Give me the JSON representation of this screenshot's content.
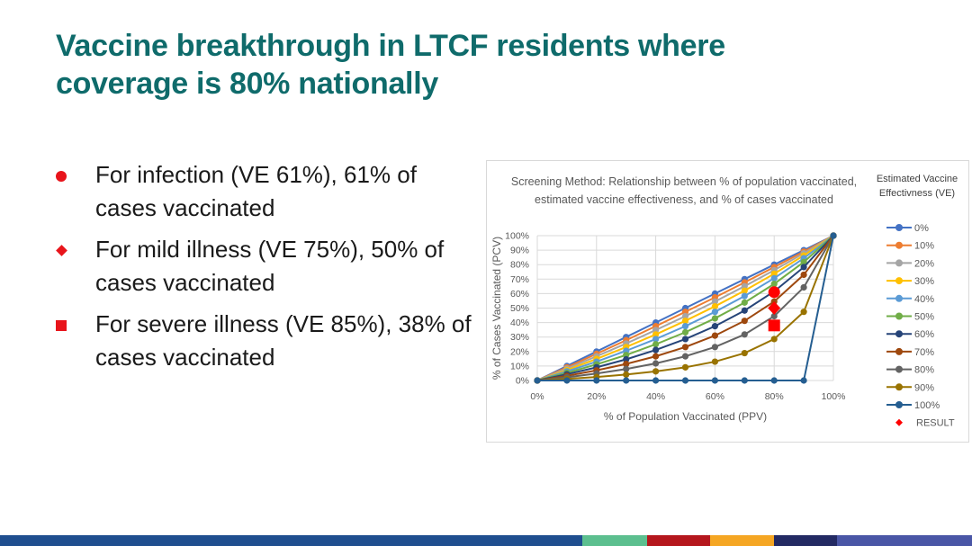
{
  "slide": {
    "title": "Vaccine breakthrough in LTCF residents where coverage is 80% nationally",
    "bullets": [
      {
        "text": "For infection (VE 61%), 61% of cases vaccinated",
        "marker": "circle"
      },
      {
        "text": "For mild illness (VE 75%), 50% of cases vaccinated",
        "marker": "diamond"
      },
      {
        "text": "For severe illness (VE 85%), 38% of cases vaccinated",
        "marker": "square"
      }
    ],
    "accent_color": "#0f6b6b",
    "marker_color": "#e8141b",
    "bottom_bar_colors": [
      "#1f4e8f",
      "#5cbf8f",
      "#b5171d",
      "#f5a623",
      "#232a63",
      "#4a56a6"
    ]
  },
  "chart_data": {
    "type": "line",
    "title": "Screening Method: Relationship between % of population vaccinated, estimated vaccine effectiveness, and % of cases vaccinated",
    "xlabel": "% of Population Vaccinated (PPV)",
    "ylabel": "% of Cases Vaccinated (PCV)",
    "xlim": [
      0,
      100
    ],
    "ylim": [
      0,
      100
    ],
    "x_ticks": [
      "0%",
      "20%",
      "40%",
      "60%",
      "80%",
      "100%"
    ],
    "y_ticks": [
      "0%",
      "10%",
      "20%",
      "30%",
      "40%",
      "50%",
      "60%",
      "70%",
      "80%",
      "90%",
      "100%"
    ],
    "grid": true,
    "legend_title": "Estimated Vaccine Effectivness (VE)",
    "legend_position": "right",
    "x": [
      0,
      10,
      20,
      30,
      40,
      50,
      60,
      70,
      80,
      90,
      100
    ],
    "series": [
      {
        "name": "0%",
        "color": "#4472c4",
        "values": [
          0,
          10,
          20,
          30,
          40,
          50,
          60,
          70,
          80,
          90,
          100
        ]
      },
      {
        "name": "10%",
        "color": "#ed7d31",
        "values": [
          0,
          9.1,
          18.4,
          27.8,
          37.5,
          47.4,
          57.4,
          67.7,
          78.3,
          89.0,
          100
        ]
      },
      {
        "name": "20%",
        "color": "#a5a5a5",
        "values": [
          0,
          8.2,
          16.7,
          25.5,
          34.8,
          44.4,
          54.5,
          65.1,
          76.2,
          87.8,
          100
        ]
      },
      {
        "name": "30%",
        "color": "#ffc000",
        "values": [
          0,
          7.2,
          14.9,
          23.1,
          31.8,
          41.2,
          51.2,
          62.0,
          73.7,
          86.3,
          100
        ]
      },
      {
        "name": "40%",
        "color": "#5b9bd5",
        "values": [
          0,
          6.3,
          13.0,
          20.5,
          28.6,
          37.5,
          47.4,
          58.3,
          70.6,
          84.4,
          100
        ]
      },
      {
        "name": "50%",
        "color": "#70ad47",
        "values": [
          0,
          5.3,
          11.1,
          17.6,
          25.0,
          33.3,
          42.9,
          53.8,
          66.7,
          81.8,
          100
        ]
      },
      {
        "name": "60%",
        "color": "#264478",
        "values": [
          0,
          4.3,
          9.1,
          14.6,
          21.1,
          28.6,
          37.5,
          48.3,
          61.5,
          78.3,
          100
        ]
      },
      {
        "name": "70%",
        "color": "#9e480e",
        "values": [
          0,
          3.2,
          7.0,
          11.4,
          16.7,
          23.1,
          31.0,
          41.2,
          54.5,
          73.0,
          100
        ]
      },
      {
        "name": "80%",
        "color": "#636363",
        "values": [
          0,
          2.2,
          4.8,
          7.9,
          11.8,
          16.7,
          23.1,
          31.8,
          44.4,
          64.3,
          100
        ]
      },
      {
        "name": "90%",
        "color": "#997300",
        "values": [
          0,
          1.1,
          2.4,
          4.1,
          6.3,
          9.1,
          13.0,
          18.9,
          28.6,
          47.4,
          100
        ]
      },
      {
        "name": "100%",
        "color": "#255e91",
        "values": [
          0,
          0,
          0,
          0,
          0,
          0,
          0,
          0,
          0,
          0,
          100
        ]
      }
    ],
    "result_series": {
      "name": "RESULT",
      "color": "#ff0000",
      "points": [
        {
          "x": 80,
          "y": 61,
          "marker": "circle",
          "label": "Infection VE 61%"
        },
        {
          "x": 80,
          "y": 50,
          "marker": "diamond",
          "label": "Mild illness VE 75%"
        },
        {
          "x": 80,
          "y": 38,
          "marker": "square",
          "label": "Severe illness VE 85%"
        }
      ]
    }
  }
}
